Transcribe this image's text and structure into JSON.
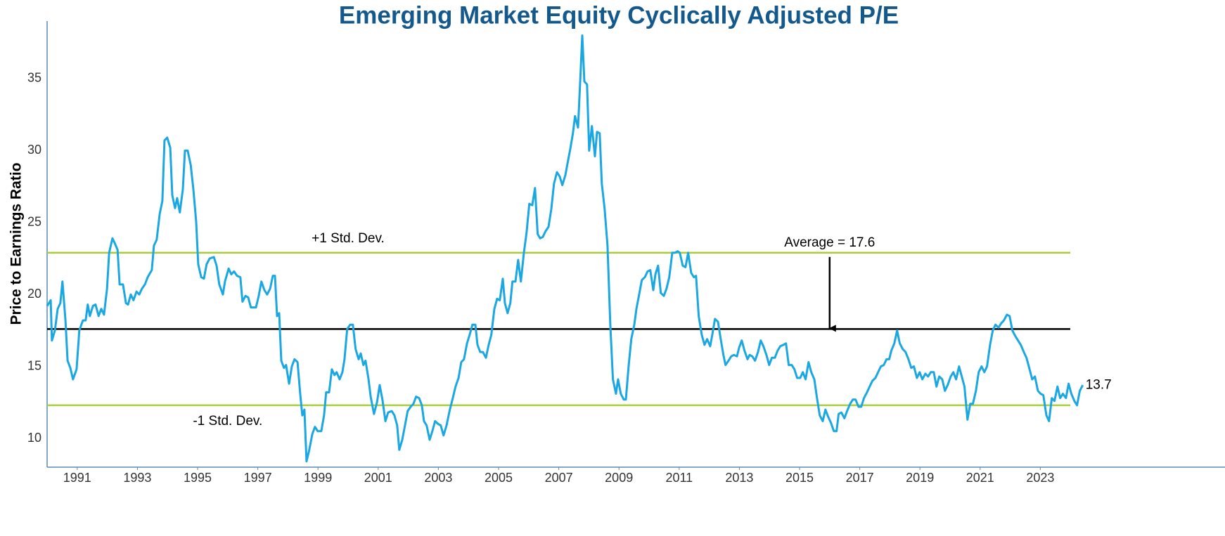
{
  "chart_data": {
    "type": "line",
    "title": "Emerging Market Equity Cyclically Adjusted P/E",
    "y_label": "Price to Earnings Ratio",
    "xlim": [
      1990,
      2025
    ],
    "xticks": [
      1991,
      1993,
      1995,
      1997,
      1999,
      2001,
      2003,
      2005,
      2007,
      2009,
      2011,
      2013,
      2015,
      2017,
      2019,
      2021,
      2023
    ],
    "ylim": [
      8,
      39
    ],
    "yticks": [
      10,
      15,
      20,
      25,
      30,
      35
    ],
    "grid": false,
    "color": "#1aa7e2",
    "reference_lines": [
      {
        "label": "+1 Std. Dev.",
        "value": 22.9,
        "color": "#a9cf38"
      },
      {
        "label": "Average =  17.6",
        "value": 17.6,
        "color": "#000000"
      },
      {
        "label": "-1 Std. Dev.",
        "value": 12.3,
        "color": "#a9cf38"
      }
    ],
    "last_label": "13.7",
    "x": [
      1990.0,
      1990.12,
      1990.16,
      1990.26,
      1990.35,
      1990.44,
      1990.51,
      1990.61,
      1990.68,
      1990.77,
      1990.86,
      1990.98,
      1991.07,
      1991.19,
      1991.28,
      1991.35,
      1991.42,
      1991.52,
      1991.61,
      1991.71,
      1991.8,
      1991.89,
      1991.99,
      1992.06,
      1992.17,
      1992.24,
      1992.34,
      1992.41,
      1992.52,
      1992.62,
      1992.69,
      1992.78,
      1992.87,
      1992.97,
      1993.06,
      1993.15,
      1993.25,
      1993.34,
      1993.48,
      1993.55,
      1993.64,
      1993.74,
      1993.83,
      1993.9,
      1993.99,
      1994.09,
      1994.16,
      1994.25,
      1994.32,
      1994.41,
      1994.51,
      1994.58,
      1994.67,
      1994.77,
      1994.86,
      1994.95,
      1995.02,
      1995.12,
      1995.21,
      1995.3,
      1995.4,
      1995.54,
      1995.63,
      1995.72,
      1995.84,
      1995.91,
      1996.03,
      1996.12,
      1996.21,
      1996.31,
      1996.42,
      1996.49,
      1996.59,
      1996.68,
      1996.77,
      1996.94,
      1997.03,
      1997.12,
      1997.22,
      1997.31,
      1997.41,
      1997.5,
      1997.57,
      1997.64,
      1997.71,
      1997.78,
      1997.87,
      1997.94,
      1998.04,
      1998.13,
      1998.22,
      1998.32,
      1998.41,
      1998.48,
      1998.55,
      1998.62,
      1998.71,
      1998.81,
      1998.9,
      1998.99,
      1999.11,
      1999.2,
      1999.27,
      1999.37,
      1999.46,
      1999.55,
      1999.62,
      1999.72,
      1999.81,
      1999.88,
      1999.97,
      2000.07,
      2000.16,
      2000.25,
      2000.35,
      2000.42,
      2000.51,
      2000.58,
      2000.68,
      2000.75,
      2000.86,
      2000.96,
      2001.05,
      2001.14,
      2001.24,
      2001.33,
      2001.45,
      2001.54,
      2001.63,
      2001.7,
      2001.8,
      2001.89,
      2001.98,
      2002.08,
      2002.17,
      2002.26,
      2002.36,
      2002.45,
      2002.52,
      2002.61,
      2002.71,
      2002.8,
      2002.89,
      2002.99,
      2003.08,
      2003.17,
      2003.27,
      2003.38,
      2003.48,
      2003.57,
      2003.67,
      2003.76,
      2003.85,
      2003.95,
      2004.04,
      2004.13,
      2004.23,
      2004.3,
      2004.39,
      2004.48,
      2004.58,
      2004.67,
      2004.76,
      2004.86,
      2004.95,
      2005.04,
      2005.14,
      2005.21,
      2005.3,
      2005.39,
      2005.46,
      2005.56,
      2005.65,
      2005.74,
      2005.84,
      2005.93,
      2006.02,
      2006.12,
      2006.21,
      2006.3,
      2006.38,
      2006.47,
      2006.56,
      2006.66,
      2006.75,
      2006.84,
      2006.94,
      2007.03,
      2007.12,
      2007.22,
      2007.29,
      2007.38,
      2007.47,
      2007.54,
      2007.64,
      2007.73,
      2007.78,
      2007.85,
      2007.94,
      2008.01,
      2008.1,
      2008.2,
      2008.27,
      2008.36,
      2008.43,
      2008.52,
      2008.62,
      2008.71,
      2008.8,
      2008.9,
      2008.97,
      2009.06,
      2009.16,
      2009.23,
      2009.32,
      2009.41,
      2009.51,
      2009.58,
      2009.67,
      2009.76,
      2009.86,
      2009.95,
      2010.04,
      2010.14,
      2010.21,
      2010.3,
      2010.39,
      2010.49,
      2010.58,
      2010.67,
      2010.77,
      2010.86,
      2010.95,
      2011.02,
      2011.12,
      2011.21,
      2011.3,
      2011.4,
      2011.49,
      2011.56,
      2011.65,
      2011.75,
      2011.84,
      2011.93,
      2012.03,
      2012.1,
      2012.19,
      2012.29,
      2012.38,
      2012.47,
      2012.54,
      2012.64,
      2012.73,
      2012.82,
      2012.92,
      2012.99,
      2013.08,
      2013.17,
      2013.27,
      2013.34,
      2013.43,
      2013.52,
      2013.62,
      2013.71,
      2013.8,
      2013.9,
      2013.99,
      2014.08,
      2014.18,
      2014.27,
      2014.36,
      2014.46,
      2014.55,
      2014.64,
      2014.74,
      2014.83,
      2014.92,
      2015.02,
      2015.11,
      2015.2,
      2015.3,
      2015.39,
      2015.49,
      2015.58,
      2015.67,
      2015.77,
      2015.86,
      2015.95,
      2016.04,
      2016.14,
      2016.23,
      2016.3,
      2016.39,
      2016.49,
      2016.58,
      2016.68,
      2016.77,
      2016.86,
      2016.96,
      2017.05,
      2017.14,
      2017.24,
      2017.33,
      2017.42,
      2017.52,
      2017.61,
      2017.7,
      2017.8,
      2017.89,
      2017.98,
      2018.05,
      2018.15,
      2018.24,
      2018.33,
      2018.43,
      2018.52,
      2018.62,
      2018.71,
      2018.8,
      2018.9,
      2018.99,
      2019.08,
      2019.18,
      2019.27,
      2019.36,
      2019.46,
      2019.55,
      2019.64,
      2019.74,
      2019.83,
      2019.92,
      2020.02,
      2020.11,
      2020.2,
      2020.3,
      2020.39,
      2020.48,
      2020.58,
      2020.67,
      2020.76,
      2020.86,
      2020.95,
      2021.05,
      2021.14,
      2021.23,
      2021.33,
      2021.42,
      2021.51,
      2021.61,
      2021.7,
      2021.79,
      2021.89,
      2021.98,
      2022.07,
      2022.17,
      2022.26,
      2022.35,
      2022.45,
      2022.54,
      2022.63,
      2022.73,
      2022.82,
      2022.92,
      2023.01,
      2023.1,
      2023.2,
      2023.29,
      2023.38,
      2023.47,
      2023.57,
      2023.66,
      2023.75,
      2023.85,
      2023.94,
      2024.03,
      2024.13,
      2024.22,
      2024.31,
      2024.41
    ],
    "values": [
      19.2,
      19.6,
      16.8,
      17.5,
      19.0,
      19.4,
      20.9,
      18.2,
      15.4,
      14.9,
      14.1,
      14.8,
      17.5,
      18.2,
      18.2,
      19.3,
      18.5,
      19.2,
      19.3,
      18.5,
      19.0,
      18.6,
      20.4,
      22.9,
      23.9,
      23.6,
      23.1,
      20.7,
      20.7,
      19.4,
      19.3,
      20.0,
      19.6,
      20.2,
      20.0,
      20.4,
      20.7,
      21.2,
      21.7,
      23.4,
      23.8,
      25.6,
      26.5,
      30.7,
      30.9,
      30.2,
      26.9,
      26.0,
      26.7,
      25.7,
      27.3,
      30.0,
      30.0,
      29.0,
      27.3,
      25.1,
      22.1,
      21.2,
      21.1,
      22.1,
      22.5,
      22.6,
      22.0,
      20.7,
      20.0,
      20.9,
      21.8,
      21.4,
      21.6,
      21.3,
      21.2,
      19.5,
      19.9,
      19.8,
      19.1,
      19.1,
      19.9,
      20.9,
      20.3,
      20.0,
      20.4,
      21.3,
      21.3,
      18.5,
      18.7,
      15.4,
      14.9,
      15.1,
      13.8,
      15.0,
      15.5,
      15.3,
      13.1,
      11.6,
      12.0,
      8.4,
      9.2,
      10.3,
      10.8,
      10.5,
      10.5,
      11.6,
      13.2,
      13.2,
      14.8,
      14.4,
      14.6,
      14.1,
      14.6,
      15.5,
      17.6,
      17.9,
      17.9,
      16.2,
      15.5,
      15.9,
      15.1,
      15.4,
      14.1,
      12.9,
      11.7,
      12.5,
      13.7,
      12.7,
      11.2,
      11.8,
      11.9,
      11.6,
      10.9,
      9.2,
      9.9,
      10.9,
      11.9,
      12.2,
      12.4,
      12.9,
      12.8,
      12.3,
      11.2,
      10.9,
      9.9,
      10.5,
      11.2,
      11.0,
      10.9,
      10.2,
      10.9,
      12.0,
      12.8,
      13.6,
      14.2,
      15.3,
      15.5,
      16.6,
      17.2,
      17.9,
      17.9,
      16.5,
      16.0,
      16.0,
      15.6,
      16.5,
      17.2,
      19.0,
      19.7,
      19.6,
      21.1,
      19.4,
      18.7,
      19.4,
      20.9,
      20.9,
      22.4,
      20.9,
      22.9,
      24.3,
      26.3,
      26.2,
      27.4,
      24.2,
      23.9,
      24.0,
      24.4,
      24.7,
      25.9,
      27.7,
      28.5,
      28.2,
      27.6,
      28.3,
      29.1,
      30.1,
      31.2,
      32.4,
      31.6,
      35.6,
      38.0,
      34.8,
      34.6,
      30.0,
      31.7,
      29.6,
      31.3,
      31.2,
      27.7,
      26.0,
      23.4,
      18.0,
      14.1,
      13.1,
      14.1,
      13.1,
      12.7,
      12.7,
      15.0,
      16.9,
      17.9,
      19.0,
      20.0,
      21.0,
      21.2,
      21.6,
      21.7,
      20.3,
      21.4,
      22.0,
      20.1,
      19.9,
      20.4,
      21.2,
      22.9,
      22.9,
      23.0,
      22.9,
      22.0,
      21.9,
      22.9,
      21.5,
      21.2,
      21.3,
      18.5,
      17.2,
      16.5,
      16.9,
      16.4,
      17.2,
      18.3,
      18.1,
      16.9,
      15.8,
      15.1,
      15.4,
      15.7,
      15.8,
      15.7,
      16.3,
      16.8,
      16.1,
      15.5,
      15.8,
      15.7,
      15.4,
      16.0,
      16.8,
      16.4,
      15.8,
      15.1,
      15.6,
      15.6,
      16.1,
      16.4,
      16.5,
      16.6,
      15.1,
      15.1,
      14.8,
      14.2,
      14.2,
      14.6,
      14.1,
      15.3,
      14.6,
      14.1,
      12.8,
      11.6,
      11.2,
      12.0,
      11.5,
      11.1,
      10.5,
      10.5,
      11.7,
      11.8,
      11.4,
      11.9,
      12.4,
      12.7,
      12.7,
      12.2,
      12.2,
      12.8,
      13.2,
      13.6,
      14.0,
      14.2,
      14.6,
      15.0,
      15.1,
      15.5,
      15.5,
      16.1,
      16.6,
      17.5,
      16.6,
      16.2,
      16.0,
      15.5,
      14.9,
      15.0,
      14.2,
      14.6,
      14.1,
      14.5,
      14.3,
      14.6,
      14.6,
      13.6,
      14.3,
      14.1,
      13.3,
      13.7,
      14.3,
      14.6,
      14.1,
      15.0,
      14.3,
      13.6,
      11.3,
      12.4,
      12.4,
      13.3,
      14.6,
      15.0,
      14.6,
      15.0,
      16.5,
      17.5,
      17.9,
      17.7,
      18.0,
      18.2,
      18.6,
      18.5,
      17.5,
      17.1,
      16.8,
      16.5,
      16.0,
      15.6,
      14.9,
      14.1,
      14.3,
      13.3,
      13.1,
      13.0,
      11.6,
      11.2,
      12.8,
      12.6,
      13.6,
      12.8,
      13.1,
      12.8,
      13.8,
      13.1,
      12.6,
      12.3,
      13.3,
      13.7
    ]
  }
}
